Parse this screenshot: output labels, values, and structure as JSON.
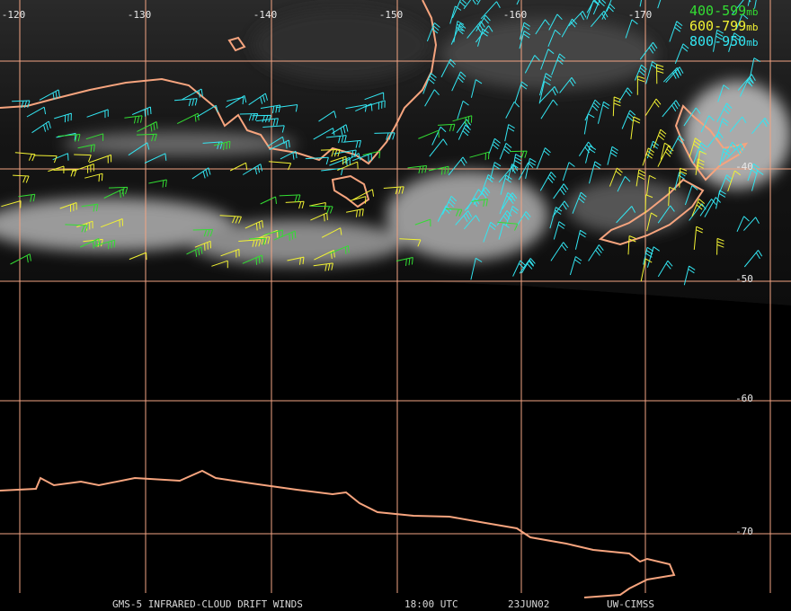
{
  "map": {
    "lon_labels": [
      "-120",
      "-130",
      "-140",
      "-150",
      "-160",
      "-170"
    ],
    "lat_labels": [
      "-40",
      "-50",
      "-60",
      "-70"
    ],
    "legend": [
      {
        "range": "400-599",
        "unit": "mb"
      },
      {
        "range": "600-799",
        "unit": "mb"
      },
      {
        "range": "800-950",
        "unit": "mb"
      }
    ],
    "footer": [
      "GMS-5 INFRARED-CLOUD DRIFT WINDS",
      "18:00 UTC",
      "23JUN02",
      "UW-CIMSS"
    ]
  }
}
